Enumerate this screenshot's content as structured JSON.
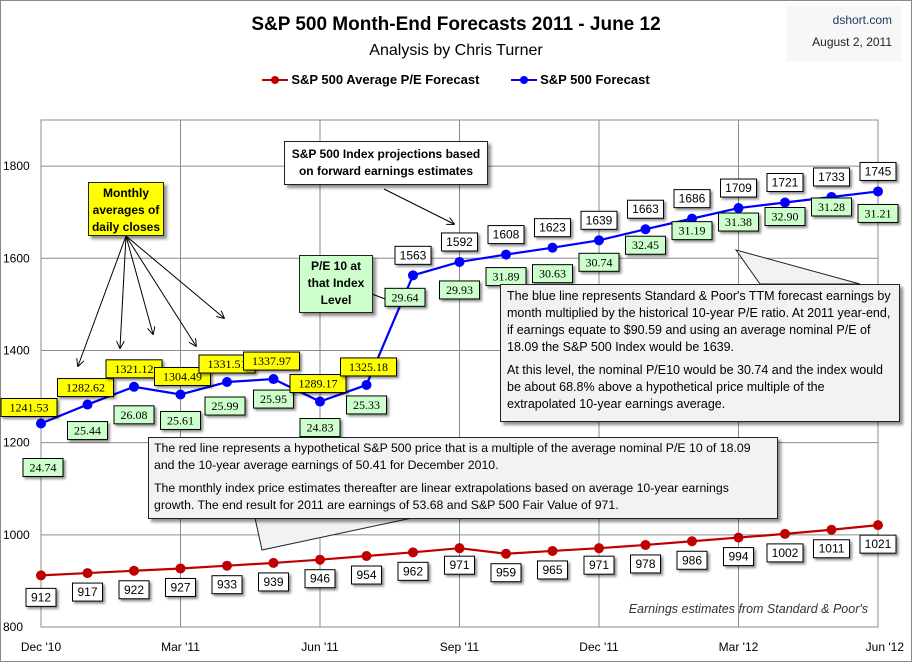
{
  "header": {
    "title": "S&P 500 Month-End Forecasts 2011 - June 12",
    "subtitle": "Analysis by Chris Turner",
    "site": "dshort.com",
    "date": "August 2, 2011"
  },
  "colors": {
    "red_series": "#c00000",
    "blue_series": "#0000ff",
    "yellow_label": "#ffff00",
    "green_label": "#ccffcc",
    "grid": "#8c8c8c"
  },
  "chart_data": {
    "type": "line",
    "title": "S&P 500 Month-End Forecasts 2011 - June 12",
    "xlabel": "",
    "ylabel": "",
    "ylim": [
      800,
      1900
    ],
    "yticks": [
      800,
      1000,
      1200,
      1400,
      1600,
      1800
    ],
    "x": [
      "Dec '10",
      "Jan '11",
      "Feb '11",
      "Mar '11",
      "Apr '11",
      "May '11",
      "Jun '11",
      "Jul '11",
      "Aug '11",
      "Sep '11",
      "Oct '11",
      "Nov '11",
      "Dec '11",
      "Jan '12",
      "Feb '12",
      "Mar '12",
      "Apr '12",
      "May '12",
      "Jun '12"
    ],
    "xtick_labels": [
      "Dec '10",
      "Mar '11",
      "Jun '11",
      "Sep '11",
      "Dec '11",
      "Mar '12",
      "Jun '12"
    ],
    "grid": true,
    "legend_position": "top",
    "series": [
      {
        "name": "S&P 500 Average P/E Forecast",
        "color": "#c00000",
        "values": [
          912,
          917,
          922,
          927,
          933,
          939,
          946,
          954,
          962,
          971,
          959,
          965,
          971,
          978,
          986,
          994,
          1002,
          1011,
          1021
        ],
        "labels": [
          "912",
          "917",
          "922",
          "927",
          "933",
          "939",
          "946",
          "954",
          "962",
          "971",
          "959",
          "965",
          "971",
          "978",
          "986",
          "994",
          "1002",
          "1011",
          "1021"
        ]
      },
      {
        "name": "S&P 500 Forecast",
        "color": "#0000ff",
        "values": [
          1241.53,
          1282.62,
          1321.12,
          1304.49,
          1331.51,
          1337.97,
          1289.17,
          1325.18,
          1563,
          1592,
          1608,
          1623,
          1639,
          1663,
          1686,
          1709,
          1721,
          1733,
          1745
        ],
        "labels": [
          "1241.53",
          "1282.62",
          "1321.12",
          "1304.49",
          "1331.51",
          "1337.97",
          "1289.17",
          "1325.18",
          "1563",
          "1592",
          "1608",
          "1623",
          "1639",
          "1663",
          "1686",
          "1709",
          "1721",
          "1733",
          "1745"
        ],
        "pe10": [
          "24.74",
          "25.44",
          "26.08",
          "25.61",
          "25.99",
          "25.95",
          "24.83",
          "25.33",
          "29.64",
          "29.93",
          "31.89",
          "30.63",
          "30.74",
          "32.45",
          "31.19",
          "31.38",
          "32.90",
          "31.28",
          "31.21"
        ]
      }
    ],
    "annotations": {
      "monthly_averages": "Monthly averages of daily closes",
      "projections": "S&P 500 Index projections based on forward earnings estimates",
      "pe10_label": "P/E 10 at that Index Level",
      "source": "Earnings estimates from Standard & Poor's"
    }
  },
  "notes": {
    "blue": [
      "The blue line represents Standard & Poor's TTM forecast earnings by month multiplied by the historical 10-year P/E ratio.  At 2011 year-end, if earnings equate to $90.59 and using an average nominal P/E of 18.09 the S&P 500 Index would be 1639.",
      "At this level, the nominal P/E10 would be 30.74 and the index would be about 68.8% above a hypothetical price multiple of the extrapolated 10-year earnings average."
    ],
    "red": [
      "The red line represents a hypothetical S&P 500 price that is a multiple of the average nominal P/E 10 of 18.09 and the 10-year average earnings of 50.41 for December 2010.",
      "The monthly index price estimates thereafter are linear extrapolations based on average 10-year earnings growth.  The end result for 2011 are earnings of 53.68 and S&P 500 Fair Value of 971."
    ]
  }
}
